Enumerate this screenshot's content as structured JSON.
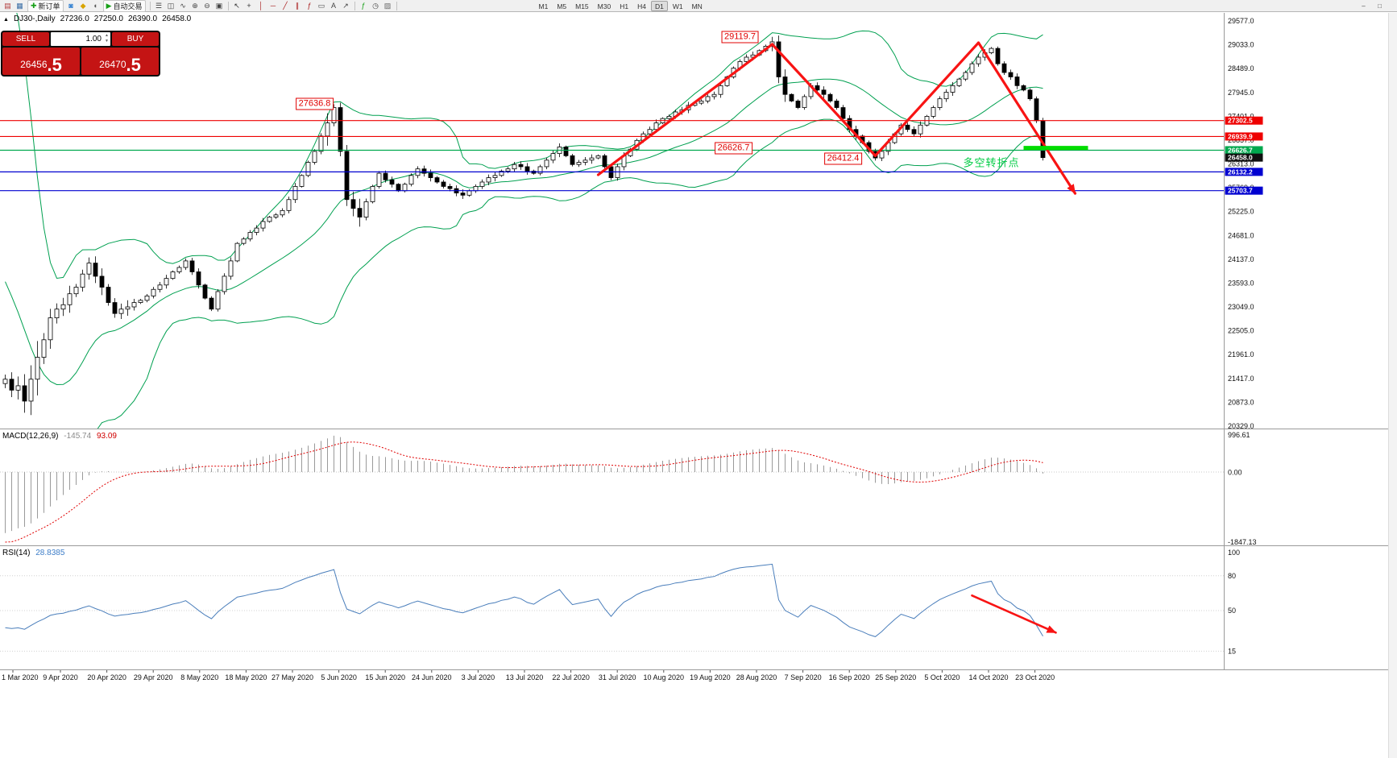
{
  "colors": {
    "toolbar_bg": "#f0f0f0",
    "chart_bg": "#ffffff",
    "bollinger": "#00a050",
    "trend_arrow": "#f81414",
    "highlight_segment": "#00dd00",
    "macd_bar": "#9a9a9a",
    "macd_signal": "#e00000",
    "rsi_line": "#4a7ebb",
    "trade_panel_red": "#c41414",
    "levels": {
      "red": "#ee0000",
      "green": "#00a84e",
      "blue": "#0000d0",
      "black": "#101010"
    }
  },
  "toolbar": {
    "items": [
      {
        "t": "icon",
        "name": "new-chart-icon",
        "glyph": "▤",
        "color": "#b23b3b"
      },
      {
        "t": "icon",
        "name": "chart-profiles-icon",
        "glyph": "▦",
        "color": "#3a6ea5"
      },
      {
        "t": "button",
        "name": "new-order-button",
        "label": "新订单",
        "glyph": "✚",
        "color": "#18a018"
      },
      {
        "t": "icon",
        "name": "chat-icon",
        "glyph": "◙",
        "color": "#2f7fd0"
      },
      {
        "t": "icon",
        "name": "news-icon",
        "glyph": "◆",
        "color": "#d8a400"
      },
      {
        "t": "icon",
        "name": "support-headset-icon",
        "glyph": "◖",
        "color": "#555555"
      },
      {
        "t": "button",
        "name": "autotrade-button",
        "label": "自动交易",
        "glyph": "▶",
        "color": "#18a018"
      },
      {
        "t": "sep"
      },
      {
        "t": "icon",
        "name": "bar-chart-icon",
        "glyph": "☰",
        "color": "#444444"
      },
      {
        "t": "icon",
        "name": "candlestick-chart-icon",
        "glyph": "◫",
        "color": "#444444"
      },
      {
        "t": "icon",
        "name": "line-chart-icon",
        "glyph": "∿",
        "color": "#444444"
      },
      {
        "t": "icon",
        "name": "zoom-in-icon",
        "glyph": "⊕",
        "color": "#444444"
      },
      {
        "t": "icon",
        "name": "zoom-out-icon",
        "glyph": "⊖",
        "color": "#444444"
      },
      {
        "t": "icon",
        "name": "tile-windows-icon",
        "glyph": "▣",
        "color": "#444444"
      },
      {
        "t": "sep"
      },
      {
        "t": "icon",
        "name": "cursor-icon",
        "glyph": "↖",
        "color": "#333333"
      },
      {
        "t": "icon",
        "name": "crosshair-icon",
        "glyph": "+",
        "color": "#333333"
      },
      {
        "t": "icon",
        "name": "vertical-line-icon",
        "glyph": "│",
        "color": "#aa2222"
      },
      {
        "t": "icon",
        "name": "horizontal-line-icon",
        "glyph": "─",
        "color": "#aa2222"
      },
      {
        "t": "icon",
        "name": "trendline-icon",
        "glyph": "╱",
        "color": "#aa2222"
      },
      {
        "t": "icon",
        "name": "channel-icon",
        "glyph": "∥",
        "color": "#aa2222"
      },
      {
        "t": "icon",
        "name": "fibonacci-icon",
        "glyph": "ƒ",
        "color": "#aa2222"
      },
      {
        "t": "icon",
        "name": "shapes-icon",
        "glyph": "▭",
        "color": "#444444"
      },
      {
        "t": "icon",
        "name": "text-label-icon",
        "glyph": "A",
        "color": "#444444"
      },
      {
        "t": "icon",
        "name": "arrow-object-icon",
        "glyph": "↗",
        "color": "#444444"
      },
      {
        "t": "sep"
      },
      {
        "t": "icon",
        "name": "indicators-icon",
        "glyph": "ƒ",
        "color": "#18a018"
      },
      {
        "t": "icon",
        "name": "periods-icon",
        "glyph": "◷",
        "color": "#444444"
      },
      {
        "t": "icon",
        "name": "templates-icon",
        "glyph": "▨",
        "color": "#666666"
      },
      {
        "t": "sep"
      }
    ],
    "timeframes": [
      "M1",
      "M5",
      "M15",
      "M30",
      "H1",
      "H4",
      "D1",
      "W1",
      "MN"
    ],
    "active_timeframe": "D1",
    "window_icons": [
      {
        "name": "minimize-window-icon",
        "glyph": "–"
      },
      {
        "name": "restore-window-icon",
        "glyph": "□"
      }
    ]
  },
  "chart_info": {
    "collapse_glyph": "▲",
    "symbol_period": "DJ30-,Daily",
    "open": "27236.0",
    "high": "27250.0",
    "low": "26390.0",
    "close": "26458.0"
  },
  "trade_panel": {
    "sell_label": "SELL",
    "buy_label": "BUY",
    "volume": "1.00",
    "spinner_up": "▲",
    "spinner_down": "▼",
    "sell_price": "26456",
    "sell_price_frac": ".5",
    "buy_price": "26470",
    "buy_price_frac": ".5"
  },
  "chart_data": {
    "type": "candlestick",
    "symbol": "DJ30-",
    "period": "Daily",
    "price": {
      "pre_history_offscreen": [
        27000,
        27900,
        28500,
        29000,
        29400,
        28900,
        27500,
        26000,
        24500,
        23000,
        21500,
        20000,
        18900,
        18600,
        19500,
        20700,
        21900,
        22300,
        21700,
        21300
      ],
      "closes": [
        21400,
        21150,
        21250,
        20900,
        21400,
        21900,
        22300,
        22800,
        23000,
        23100,
        23350,
        23500,
        23800,
        24050,
        23750,
        23500,
        23150,
        22900,
        23000,
        23050,
        23150,
        23200,
        23300,
        23450,
        23550,
        23700,
        23850,
        23950,
        24100,
        23850,
        23550,
        23250,
        23000,
        23400,
        23750,
        24100,
        24500,
        24600,
        24750,
        24850,
        25000,
        25100,
        25150,
        25250,
        25500,
        25800,
        26050,
        26350,
        26600,
        26950,
        27250,
        27600,
        26600,
        25500,
        25300,
        25100,
        25450,
        25800,
        26100,
        25950,
        25850,
        25700,
        25850,
        26050,
        26200,
        26100,
        26000,
        25900,
        25800,
        25750,
        25650,
        25600,
        25700,
        25800,
        25900,
        26000,
        26050,
        26150,
        26200,
        26300,
        26250,
        26150,
        26100,
        26250,
        26400,
        26550,
        26700,
        26500,
        26300,
        26350,
        26400,
        26450,
        26500,
        26250,
        26000,
        26250,
        26500,
        26650,
        26850,
        27000,
        27100,
        27250,
        27350,
        27400,
        27500,
        27550,
        27650,
        27700,
        27750,
        27850,
        27900,
        28100,
        28300,
        28500,
        28650,
        28750,
        28800,
        28900,
        29000,
        29100,
        28300,
        27900,
        27750,
        27600,
        27850,
        28100,
        28000,
        27900,
        27750,
        27600,
        27350,
        27100,
        26950,
        26800,
        26600,
        26450,
        26600,
        26800,
        27000,
        27200,
        27100,
        27000,
        27200,
        27400,
        27600,
        27800,
        27950,
        28100,
        28250,
        28400,
        28600,
        28750,
        28850,
        28950,
        28600,
        28400,
        28300,
        28100,
        28000,
        27800,
        27300,
        26458
      ]
    },
    "indicators": {
      "bollinger": {
        "period": 20,
        "deviation": 2
      },
      "macd": {
        "label": "MACD(12,26,9)",
        "value": "-145.74",
        "signal_value": "93.09",
        "fast": 12,
        "slow": 26,
        "signal": 9,
        "scale": [
          996.61,
          0,
          -1847.13
        ]
      },
      "rsi": {
        "label": "RSI(14)",
        "value": "28.8385",
        "period": 14,
        "scale": [
          100,
          80,
          50,
          15
        ]
      }
    },
    "y_axis": [
      29577,
      29033,
      28489,
      27945,
      27401,
      26857,
      26313,
      25769,
      25225,
      24681,
      24137,
      23593,
      23049,
      22505,
      21961,
      21417,
      20873,
      20329
    ],
    "x_axis_dates": [
      "1 Mar 2020",
      "9 Apr 2020",
      "20 Apr 2020",
      "29 Apr 2020",
      "8 May 2020",
      "18 May 2020",
      "27 May 2020",
      "5 Jun 2020",
      "15 Jun 2020",
      "24 Jun 2020",
      "3 Jul 2020",
      "13 Jul 2020",
      "22 Jul 2020",
      "31 Jul 2020",
      "10 Aug 2020",
      "19 Aug 2020",
      "28 Aug 2020",
      "7 Sep 2020",
      "16 Sep 2020",
      "25 Sep 2020",
      "5 Oct 2020",
      "14 Oct 2020",
      "23 Oct 2020"
    ],
    "levels": [
      {
        "price": 27302.5,
        "color": "red",
        "line": true,
        "tag": true
      },
      {
        "price": 26939.9,
        "color": "red",
        "line": true,
        "tag": true
      },
      {
        "price": 26626.7,
        "color": "green",
        "line": true,
        "tag": true
      },
      {
        "price": 26458.0,
        "color": "black",
        "line": false,
        "tag": true
      },
      {
        "price": 26132.2,
        "color": "blue",
        "line": true,
        "tag": true
      },
      {
        "price": 25703.7,
        "color": "blue",
        "line": true,
        "tag": true
      }
    ],
    "callouts": [
      {
        "text": "27636.8",
        "i": 48,
        "p": 27690
      },
      {
        "text": "29119.7",
        "i": 114,
        "p": 29210
      },
      {
        "text": "26626.7",
        "i": 113,
        "p": 26670
      },
      {
        "text": "26412.4",
        "i": 130,
        "p": 26430
      }
    ],
    "annotations": {
      "note": {
        "text": "多空转折点",
        "i": 153,
        "p": 26360
      },
      "trend_arrows": [
        {
          "from": {
            "i": 92,
            "p": 26065
          },
          "to": {
            "i": 119,
            "p": 29044
          },
          "head": false
        },
        {
          "from": {
            "i": 119,
            "p": 29044
          },
          "to": {
            "i": 135,
            "p": 26500
          },
          "head": false
        },
        {
          "from": {
            "i": 135,
            "p": 26500
          },
          "to": {
            "i": 151,
            "p": 29080
          },
          "head": false
        },
        {
          "from": {
            "i": 151,
            "p": 29080
          },
          "to": {
            "i": 166,
            "p": 25640
          },
          "head": true
        }
      ],
      "support_segment": {
        "i_from": 158,
        "i_to": 168,
        "p": 26680
      },
      "rsi_arrow": {
        "from": {
          "i": 150,
          "v": 63
        },
        "to": {
          "i": 163,
          "v": 31
        },
        "head": true
      }
    }
  }
}
